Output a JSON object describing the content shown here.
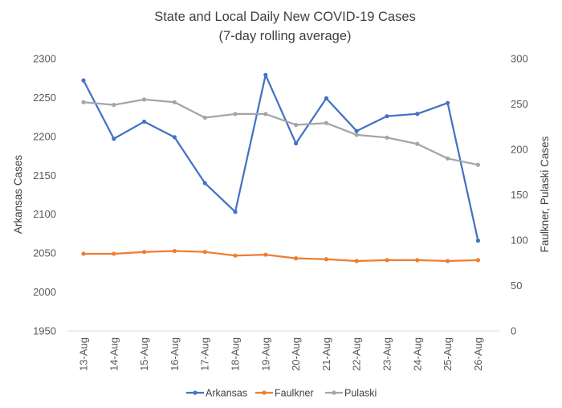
{
  "chart_data": {
    "type": "line",
    "title": "State and Local Daily New COVID-19 Cases",
    "subtitle": "(7-day rolling average)",
    "ylabel": "Arkansas Cases",
    "y2label": "Faulkner, Pulaski Cases",
    "categories": [
      "13-Aug",
      "14-Aug",
      "15-Aug",
      "16-Aug",
      "17-Aug",
      "18-Aug",
      "19-Aug",
      "20-Aug",
      "21-Aug",
      "22-Aug",
      "23-Aug",
      "24-Aug",
      "25-Aug",
      "26-Aug"
    ],
    "ylim": [
      1950,
      2300
    ],
    "yticks": [
      1950,
      2000,
      2050,
      2100,
      2150,
      2200,
      2250,
      2300
    ],
    "y2lim": [
      0,
      300
    ],
    "y2ticks": [
      0,
      50,
      100,
      150,
      200,
      250,
      300
    ],
    "grid": false,
    "legend_position": "bottom",
    "series": [
      {
        "name": "Arkansas",
        "axis": "left",
        "color": "#4472C4",
        "values": [
          2272,
          2197,
          2219,
          2199,
          2140,
          2103,
          2279,
          2191,
          2249,
          2207,
          2226,
          2229,
          2243,
          2066
        ]
      },
      {
        "name": "Faulkner",
        "axis": "right",
        "color": "#ED7D31",
        "values": [
          85,
          85,
          87,
          88,
          87,
          83,
          84,
          80,
          79,
          77,
          78,
          78,
          77,
          78
        ]
      },
      {
        "name": "Pulaski",
        "axis": "right",
        "color": "#A5A5A5",
        "values": [
          252,
          249,
          255,
          252,
          235,
          239,
          239,
          227,
          229,
          216,
          213,
          206,
          190,
          183
        ]
      }
    ]
  }
}
